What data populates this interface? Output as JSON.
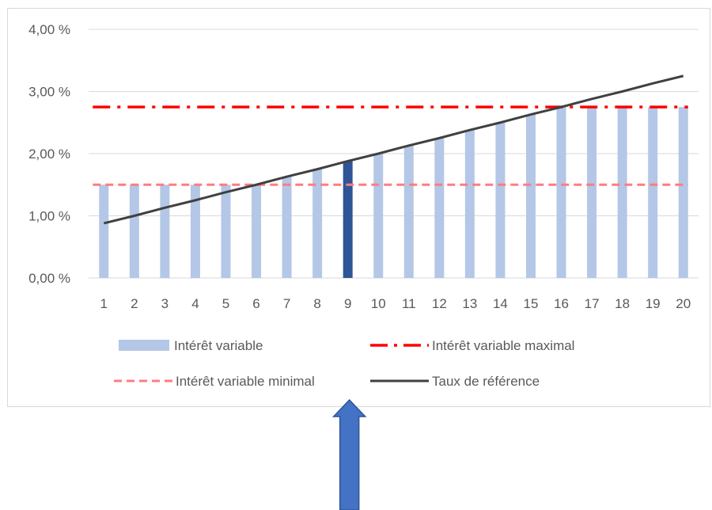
{
  "chart_data": {
    "type": "bar",
    "categories": [
      "1",
      "2",
      "3",
      "4",
      "5",
      "6",
      "7",
      "8",
      "9",
      "10",
      "11",
      "12",
      "13",
      "14",
      "15",
      "16",
      "17",
      "18",
      "19",
      "20"
    ],
    "series": [
      {
        "name": "Intérêt variable",
        "kind": "bar",
        "color": "#b4c7e7",
        "values": [
          1.5,
          1.5,
          1.5,
          1.5,
          1.5,
          1.5,
          1.63,
          1.75,
          1.88,
          2.0,
          2.13,
          2.25,
          2.38,
          2.5,
          2.63,
          2.75,
          2.75,
          2.75,
          2.75,
          2.75
        ]
      },
      {
        "name": "Intérêt variable maximal",
        "kind": "line",
        "style": "dash-dot",
        "color": "#ff0000",
        "values": [
          2.75,
          2.75,
          2.75,
          2.75,
          2.75,
          2.75,
          2.75,
          2.75,
          2.75,
          2.75,
          2.75,
          2.75,
          2.75,
          2.75,
          2.75,
          2.75,
          2.75,
          2.75,
          2.75,
          2.75
        ]
      },
      {
        "name": "Intérêt variable minimal",
        "kind": "line",
        "style": "dashed",
        "color": "#ff7c80",
        "values": [
          1.5,
          1.5,
          1.5,
          1.5,
          1.5,
          1.5,
          1.5,
          1.5,
          1.5,
          1.5,
          1.5,
          1.5,
          1.5,
          1.5,
          1.5,
          1.5,
          1.5,
          1.5,
          1.5,
          1.5
        ]
      },
      {
        "name": "Taux de référence",
        "kind": "line",
        "style": "solid",
        "color": "#404040",
        "values": [
          0.88,
          1.0,
          1.13,
          1.25,
          1.38,
          1.5,
          1.63,
          1.75,
          1.88,
          2.0,
          2.13,
          2.25,
          2.38,
          2.5,
          2.63,
          2.75,
          2.88,
          3.0,
          3.13,
          3.25
        ]
      }
    ],
    "highlight": {
      "category": "9",
      "color": "#2f5597"
    },
    "y_ticks": [
      "0,00 %",
      "1,00 %",
      "2,00 %",
      "3,00 %",
      "4,00 %"
    ],
    "ylim": [
      0,
      4
    ],
    "grid": true,
    "legend_position": "bottom",
    "title": "",
    "xlabel": "",
    "ylabel": ""
  },
  "annotation": {
    "icon": "up-arrow-icon",
    "color": "#4472c4",
    "border": "#2f5597",
    "points_to_category": "9"
  }
}
